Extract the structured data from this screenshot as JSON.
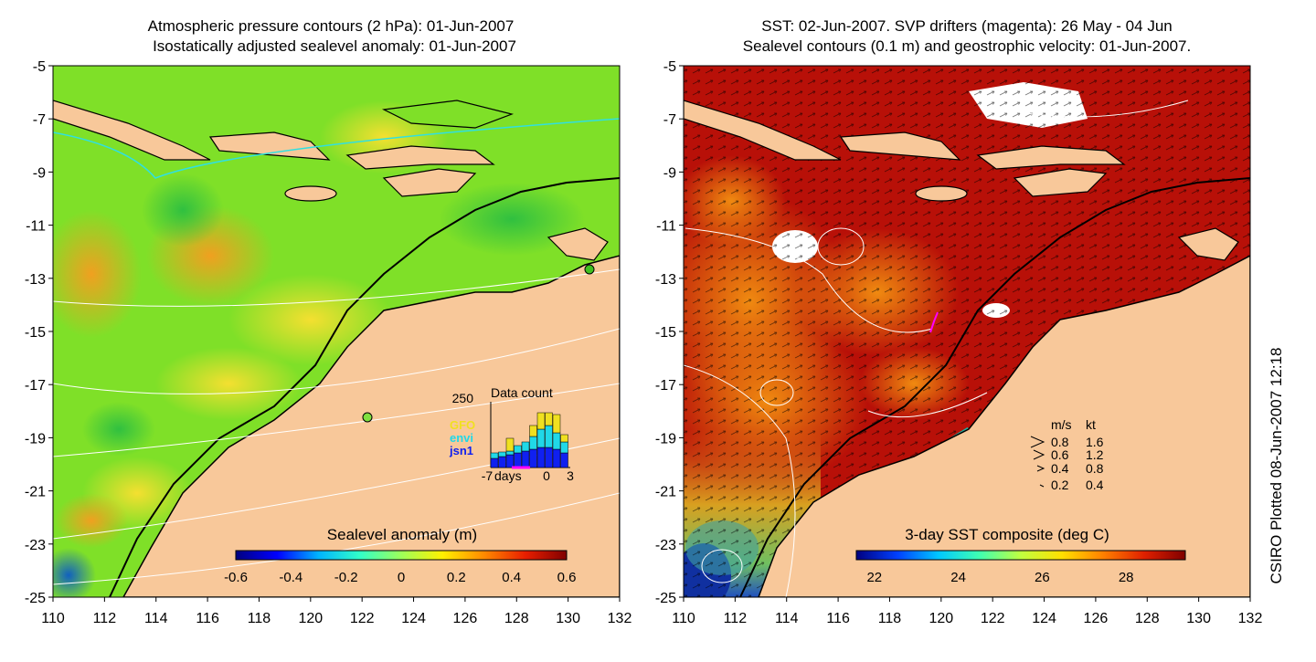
{
  "left_panel": {
    "title_line1": "Atmospheric pressure contours (2 hPa): 01-Jun-2007",
    "title_line2": "Isostatically adjusted sealevel anomaly: 01-Jun-2007",
    "colorbar_title": "Sealevel anomaly (m)",
    "colorbar_ticks": [
      "-0.6",
      "-0.4",
      "-0.2",
      "0",
      "0.2",
      "0.4",
      "0.6"
    ],
    "colorbar_colors": [
      "#00007f",
      "#0000ff",
      "#00b4ff",
      "#32ffc8",
      "#9dff5a",
      "#fff000",
      "#ff8a00",
      "#e81e00",
      "#800000"
    ],
    "inset": {
      "y_max_label": "250",
      "title": "Data count",
      "x_label": "days",
      "x_ticks": [
        "-7",
        "0",
        "3"
      ],
      "legend": [
        {
          "name": "GFO",
          "color": "#f0e020"
        },
        {
          "name": "envi",
          "color": "#20d8e8"
        },
        {
          "name": "jsn1",
          "color": "#1020f0"
        }
      ]
    }
  },
  "right_panel": {
    "title_line1": "SST: 02-Jun-2007. SVP drifters (magenta): 26 May - 04 Jun",
    "title_line2": "Sealevel contours (0.1 m) and geostrophic velocity: 01-Jun-2007.",
    "colorbar_title": "3-day SST composite (deg C)",
    "colorbar_ticks": [
      "22",
      "24",
      "26",
      "28"
    ],
    "colorbar_colors": [
      "#00007f",
      "#0040ff",
      "#00c8ff",
      "#40ffb0",
      "#c0ff40",
      "#ffe000",
      "#ff8000",
      "#e02000",
      "#800000"
    ],
    "velocity_legend": {
      "header_ms": "m/s",
      "header_kt": "kt",
      "rows": [
        {
          "ms": "0.8",
          "kt": "1.6"
        },
        {
          "ms": "0.6",
          "kt": "1.2"
        },
        {
          "ms": "0.4",
          "kt": "0.8"
        },
        {
          "ms": "0.2",
          "kt": "0.4"
        }
      ]
    }
  },
  "axes": {
    "y_ticks": [
      "-5",
      "-7",
      "-9",
      "-11",
      "-13",
      "-15",
      "-17",
      "-19",
      "-21",
      "-23",
      "-25"
    ],
    "x_ticks": [
      "110",
      "112",
      "114",
      "116",
      "118",
      "120",
      "122",
      "124",
      "126",
      "128",
      "130",
      "132"
    ],
    "lon_range": [
      110,
      132
    ],
    "lat_range": [
      -25,
      -5
    ]
  },
  "credit": "CSIRO Plotted 08-Jun-2007 12:18",
  "colors": {
    "land": "#f8c89a",
    "ocean_left": "#7fe028",
    "ocean_right": "#b81008",
    "drifter": "#ff00ff"
  }
}
